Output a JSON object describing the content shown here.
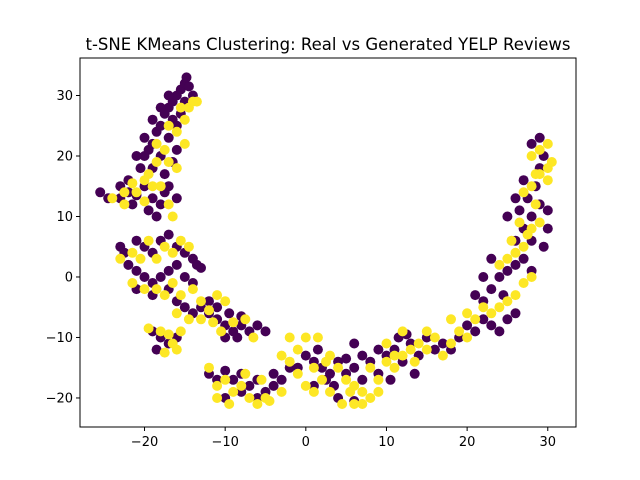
{
  "chart_data": {
    "type": "scatter",
    "title": "t-SNE KMeans Clustering: Real vs Generated YELP Reviews",
    "xlabel": "",
    "ylabel": "",
    "xlim": [
      -28,
      33.5
    ],
    "ylim": [
      -24.8,
      36.2
    ],
    "xticks": [
      -20,
      -10,
      0,
      10,
      20,
      30
    ],
    "yticks": [
      -20,
      -10,
      0,
      10,
      20,
      30
    ],
    "grid": false,
    "legend": "none",
    "series": [
      {
        "color": "#440154",
        "points": [
          [
            -25.5,
            14
          ],
          [
            -24.5,
            13
          ],
          [
            -23,
            15
          ],
          [
            -22,
            14
          ],
          [
            -21.5,
            12
          ],
          [
            -21,
            13.5
          ],
          [
            -20,
            15
          ],
          [
            -19,
            13
          ],
          [
            -18,
            12
          ],
          [
            -17.5,
            14
          ],
          [
            -20.5,
            18
          ],
          [
            -20,
            20
          ],
          [
            -19.5,
            21
          ],
          [
            -19,
            22
          ],
          [
            -18.5,
            24
          ],
          [
            -18,
            25
          ],
          [
            -17.5,
            27
          ],
          [
            -17,
            28
          ],
          [
            -16.5,
            29
          ],
          [
            -16,
            30
          ],
          [
            -15.5,
            31
          ],
          [
            -15,
            32
          ],
          [
            -14.8,
            33
          ],
          [
            -14.5,
            31.5
          ],
          [
            -16.5,
            26
          ],
          [
            -17,
            23
          ],
          [
            -16,
            25
          ],
          [
            -15.5,
            27
          ],
          [
            -18,
            20
          ],
          [
            -19,
            18
          ],
          [
            -17.5,
            17
          ],
          [
            -16,
            21
          ],
          [
            -16.5,
            19
          ],
          [
            -19,
            26
          ],
          [
            -18,
            28
          ],
          [
            -17,
            30
          ],
          [
            -15,
            29
          ],
          [
            -14,
            30
          ],
          [
            -21,
            20
          ],
          [
            -20,
            23
          ],
          [
            -22,
            16
          ],
          [
            -23,
            13
          ],
          [
            -19.5,
            11
          ],
          [
            -18.5,
            10
          ],
          [
            -16,
            13
          ],
          [
            -17,
            15
          ],
          [
            -23,
            5
          ],
          [
            -22.5,
            4
          ],
          [
            -21,
            6
          ],
          [
            -20,
            5
          ],
          [
            -19,
            4
          ],
          [
            -18,
            6
          ],
          [
            -17,
            7
          ],
          [
            -16,
            5
          ],
          [
            -15,
            4
          ],
          [
            -14,
            3
          ],
          [
            -13.5,
            2
          ],
          [
            -13,
            1.5
          ],
          [
            -22,
            2
          ],
          [
            -21,
            1
          ],
          [
            -20,
            0
          ],
          [
            -19,
            -1
          ],
          [
            -18,
            0
          ],
          [
            -17,
            1
          ],
          [
            -16,
            2
          ],
          [
            -15,
            0
          ],
          [
            -14,
            -1
          ],
          [
            -21,
            -2
          ],
          [
            -19,
            -3
          ],
          [
            -17,
            -2
          ],
          [
            -16,
            -4
          ],
          [
            -15,
            -5
          ],
          [
            -14,
            -6
          ],
          [
            -13,
            -5
          ],
          [
            -12,
            -6
          ],
          [
            -11,
            -7
          ],
          [
            -10,
            -8
          ],
          [
            -9,
            -9
          ],
          [
            -8,
            -8
          ],
          [
            -7,
            -9
          ],
          [
            -6,
            -8
          ],
          [
            -5,
            -9
          ],
          [
            -12,
            -4
          ],
          [
            -11,
            -5
          ],
          [
            -9.5,
            -6
          ],
          [
            -8,
            -6.5
          ],
          [
            -10,
            -10
          ],
          [
            -8.5,
            -10
          ],
          [
            -19,
            -9
          ],
          [
            -18,
            -10
          ],
          [
            -17,
            -11
          ],
          [
            -18.5,
            -12
          ],
          [
            -16,
            -10
          ],
          [
            -12,
            -16
          ],
          [
            -11,
            -17
          ],
          [
            -10,
            -15.5
          ],
          [
            -9,
            -17
          ],
          [
            -8,
            -16
          ],
          [
            -7,
            -18
          ],
          [
            -6,
            -17
          ],
          [
            -5,
            -19
          ],
          [
            -4,
            -18
          ],
          [
            -3,
            -17
          ],
          [
            -10,
            -20
          ],
          [
            -8,
            -19
          ],
          [
            -6,
            -20
          ],
          [
            -4,
            -16
          ],
          [
            -2,
            -15
          ],
          [
            0,
            -13
          ],
          [
            1,
            -14
          ],
          [
            2,
            -15
          ],
          [
            3,
            -16
          ],
          [
            -1,
            -15
          ],
          [
            1.5,
            -12
          ],
          [
            2.5,
            -17
          ],
          [
            3.5,
            -18
          ],
          [
            1,
            -18
          ],
          [
            4,
            -14
          ],
          [
            5,
            -16
          ],
          [
            6,
            -15
          ],
          [
            7,
            -17
          ],
          [
            8,
            -14
          ],
          [
            9,
            -16
          ],
          [
            10,
            -13
          ],
          [
            11,
            -12
          ],
          [
            12,
            -14
          ],
          [
            13,
            -11
          ],
          [
            14,
            -13
          ],
          [
            15,
            -10
          ],
          [
            16,
            -12
          ],
          [
            17,
            -11
          ],
          [
            18,
            -12
          ],
          [
            19,
            -10
          ],
          [
            20,
            -8
          ],
          [
            21,
            -9
          ],
          [
            22,
            -7
          ],
          [
            23,
            -8
          ],
          [
            24,
            -9
          ],
          [
            25,
            -7
          ],
          [
            26,
            -6
          ],
          [
            22,
            -4
          ],
          [
            21,
            -3
          ],
          [
            23,
            -2
          ],
          [
            24,
            0
          ],
          [
            25,
            1
          ],
          [
            26,
            2
          ],
          [
            27,
            3
          ],
          [
            28,
            1
          ],
          [
            23,
            3
          ],
          [
            22,
            0
          ],
          [
            24.5,
            -3
          ],
          [
            26,
            6
          ],
          [
            27,
            8
          ],
          [
            28,
            10
          ],
          [
            29,
            12
          ],
          [
            30,
            11
          ],
          [
            27.5,
            13
          ],
          [
            26.5,
            11
          ],
          [
            28.5,
            15
          ],
          [
            29,
            18
          ],
          [
            29.5,
            20
          ],
          [
            28,
            22
          ],
          [
            29,
            23
          ],
          [
            27,
            16
          ],
          [
            26,
            13
          ],
          [
            25,
            10
          ],
          [
            30,
            8
          ],
          [
            29.5,
            5
          ],
          [
            28,
            6
          ],
          [
            6,
            -11
          ],
          [
            7,
            -13
          ],
          [
            5,
            -13.5
          ],
          [
            11.5,
            -10
          ],
          [
            12.5,
            -9.5
          ],
          [
            9,
            -12
          ],
          [
            10.5,
            -17
          ],
          [
            13.5,
            -16
          ],
          [
            4,
            -20
          ],
          [
            6,
            -20.5
          ]
        ]
      },
      {
        "color": "#fde725",
        "points": [
          [
            -24,
            13
          ],
          [
            -22.5,
            12
          ],
          [
            -21,
            14
          ],
          [
            -20,
            12.5
          ],
          [
            -19,
            15
          ],
          [
            -18,
            15
          ],
          [
            -17,
            12
          ],
          [
            -16.5,
            10
          ],
          [
            -19.5,
            17
          ],
          [
            -18.5,
            19
          ],
          [
            -17.5,
            21
          ],
          [
            -17,
            25
          ],
          [
            -16,
            24
          ],
          [
            -15,
            26
          ],
          [
            -14.5,
            28
          ],
          [
            -14,
            29
          ],
          [
            -15,
            22
          ],
          [
            -16,
            18
          ],
          [
            -17,
            19
          ],
          [
            -18.5,
            22
          ],
          [
            -20,
            16
          ],
          [
            -21.5,
            15.5
          ],
          [
            -22.5,
            14
          ],
          [
            -15.5,
            28
          ],
          [
            -13.5,
            29
          ],
          [
            -23,
            3
          ],
          [
            -21.5,
            4
          ],
          [
            -20.5,
            3
          ],
          [
            -19.5,
            6
          ],
          [
            -18.5,
            3
          ],
          [
            -17.5,
            5
          ],
          [
            -16.5,
            4
          ],
          [
            -15.5,
            6
          ],
          [
            -14.5,
            5
          ],
          [
            -21.5,
            -1
          ],
          [
            -20,
            -2
          ],
          [
            -18.5,
            -2
          ],
          [
            -17.5,
            -3
          ],
          [
            -16.5,
            -1
          ],
          [
            -15.5,
            -3
          ],
          [
            -14,
            -2
          ],
          [
            -13,
            -4
          ],
          [
            -12,
            -5.5
          ],
          [
            -11,
            -3
          ],
          [
            -10,
            -4
          ],
          [
            -16,
            -6
          ],
          [
            -14.5,
            -7
          ],
          [
            -13,
            -7
          ],
          [
            -11.5,
            -7.5
          ],
          [
            -10.5,
            -9
          ],
          [
            -9,
            -7.5
          ],
          [
            -7.5,
            -7
          ],
          [
            -6.5,
            -10
          ],
          [
            -19.5,
            -8.5
          ],
          [
            -18,
            -9
          ],
          [
            -17,
            -9.5
          ],
          [
            -16.5,
            -11
          ],
          [
            -17.5,
            -12.5
          ],
          [
            -15.5,
            -9
          ],
          [
            -16,
            -12
          ],
          [
            -12,
            -15
          ],
          [
            -11,
            -18
          ],
          [
            -10,
            -17
          ],
          [
            -9,
            -19
          ],
          [
            -8,
            -18
          ],
          [
            -7,
            -20
          ],
          [
            -6,
            -21
          ],
          [
            -5,
            -20
          ],
          [
            -11,
            -20
          ],
          [
            -9.5,
            -21
          ],
          [
            -7.5,
            -16
          ],
          [
            -5.5,
            -17
          ],
          [
            -4.5,
            -20.5
          ],
          [
            -3,
            -19
          ],
          [
            -2,
            -10
          ],
          [
            -1,
            -12
          ],
          [
            0,
            -10
          ],
          [
            1,
            -15
          ],
          [
            2,
            -17
          ],
          [
            3,
            -13
          ],
          [
            -1,
            -16
          ],
          [
            0,
            -18
          ],
          [
            1,
            -19
          ],
          [
            2.5,
            -14
          ],
          [
            4,
            -15
          ],
          [
            5,
            -17
          ],
          [
            6,
            -18
          ],
          [
            7,
            -19
          ],
          [
            8,
            -20
          ],
          [
            7,
            -21
          ],
          [
            6,
            -21
          ],
          [
            5.5,
            -19
          ],
          [
            8,
            -15
          ],
          [
            9,
            -17
          ],
          [
            10,
            -14
          ],
          [
            11,
            -15
          ],
          [
            12,
            -13
          ],
          [
            13,
            -12
          ],
          [
            14,
            -11
          ],
          [
            15,
            -12
          ],
          [
            16,
            -10
          ],
          [
            17,
            -13
          ],
          [
            18,
            -11
          ],
          [
            19,
            -9
          ],
          [
            20,
            -6
          ],
          [
            21,
            -7
          ],
          [
            22,
            -5
          ],
          [
            23,
            -6
          ],
          [
            24,
            -5
          ],
          [
            25,
            -4
          ],
          [
            26,
            -3
          ],
          [
            27,
            -1
          ],
          [
            28,
            0
          ],
          [
            26,
            4
          ],
          [
            25,
            3
          ],
          [
            24,
            2
          ],
          [
            27,
            5
          ],
          [
            28,
            8
          ],
          [
            29,
            9
          ],
          [
            28.5,
            12
          ],
          [
            27,
            14
          ],
          [
            28,
            15
          ],
          [
            29,
            17
          ],
          [
            30,
            16
          ],
          [
            30,
            18
          ],
          [
            29,
            21
          ],
          [
            28,
            20
          ],
          [
            30.5,
            19
          ],
          [
            30,
            22
          ],
          [
            28.5,
            17
          ],
          [
            26.5,
            9
          ],
          [
            27.5,
            7
          ],
          [
            25.5,
            6
          ],
          [
            12,
            -9
          ],
          [
            10,
            -11
          ],
          [
            11,
            -13
          ],
          [
            13.5,
            -14
          ],
          [
            15,
            -9
          ],
          [
            18,
            -7
          ],
          [
            20,
            -10
          ],
          [
            3,
            -19
          ],
          [
            4.5,
            -21
          ],
          [
            9,
            -19
          ],
          [
            1.5,
            -10
          ],
          [
            -2,
            -14
          ],
          [
            -3,
            -13
          ]
        ]
      }
    ]
  }
}
